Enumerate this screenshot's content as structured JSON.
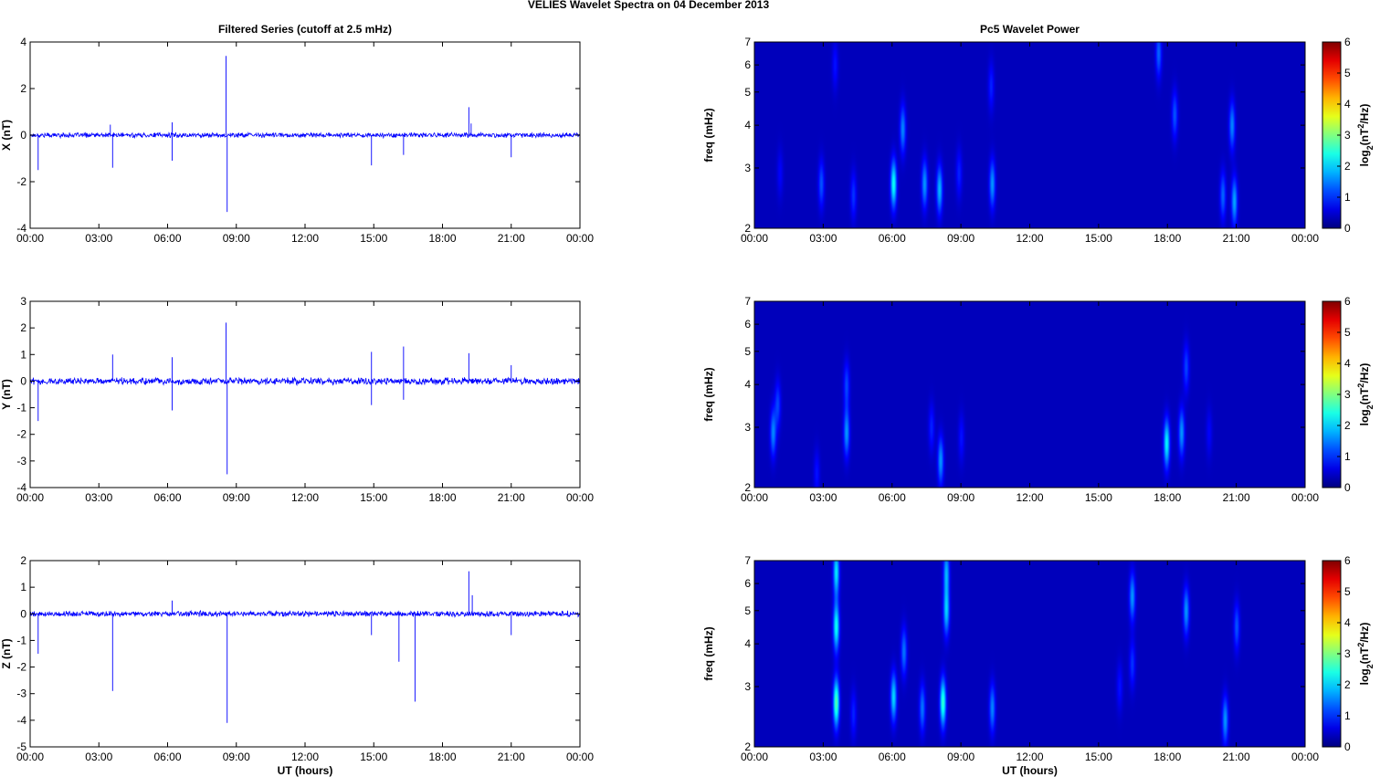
{
  "title": "VELIES Wavelet Spectra on 04 December  2013",
  "colors": {
    "trace": "#0000ff",
    "background": "#00008f",
    "axes": "#000000"
  },
  "chart_data": [
    {
      "type": "line",
      "title": "Filtered Series (cutoff at 2.5 mHz)",
      "ylabel": "X (nT)",
      "xlabel": "",
      "xlim": [
        0,
        24
      ],
      "ylim": [
        -4,
        4
      ],
      "xticks": [
        "00:00",
        "03:00",
        "06:00",
        "09:00",
        "12:00",
        "15:00",
        "18:00",
        "21:00",
        "00:00"
      ],
      "yticks": [
        "-4",
        "-2",
        "0",
        "2",
        "4"
      ],
      "noise": 0.08,
      "spikes": [
        [
          0.35,
          -1.5
        ],
        [
          3.6,
          -1.4
        ],
        [
          3.5,
          0.45
        ],
        [
          6.2,
          -1.1
        ],
        [
          6.2,
          0.55
        ],
        [
          8.55,
          3.4
        ],
        [
          8.6,
          -3.3
        ],
        [
          14.9,
          -1.3
        ],
        [
          16.3,
          -0.85
        ],
        [
          19.15,
          1.2
        ],
        [
          19.25,
          0.5
        ],
        [
          21.0,
          -0.95
        ]
      ]
    },
    {
      "type": "line",
      "title": "",
      "ylabel": "Y (nT)",
      "xlabel": "",
      "xlim": [
        0,
        24
      ],
      "ylim": [
        -4,
        3
      ],
      "xticks": [
        "00:00",
        "03:00",
        "06:00",
        "09:00",
        "12:00",
        "15:00",
        "18:00",
        "21:00",
        "00:00"
      ],
      "yticks": [
        "-4",
        "-3",
        "-2",
        "-1",
        "0",
        "1",
        "2",
        "3"
      ],
      "noise": 0.1,
      "spikes": [
        [
          0.35,
          -1.5
        ],
        [
          3.6,
          1.0
        ],
        [
          6.2,
          -1.1
        ],
        [
          6.2,
          0.9
        ],
        [
          8.55,
          2.2
        ],
        [
          8.6,
          -3.5
        ],
        [
          14.9,
          1.1
        ],
        [
          14.9,
          -0.9
        ],
        [
          16.3,
          1.3
        ],
        [
          16.3,
          -0.7
        ],
        [
          19.15,
          1.05
        ],
        [
          21.0,
          0.6
        ]
      ]
    },
    {
      "type": "line",
      "title": "",
      "ylabel": "Z (nT)",
      "xlabel": "UT (hours)",
      "xlim": [
        0,
        24
      ],
      "ylim": [
        -5,
        2
      ],
      "xticks": [
        "00:00",
        "03:00",
        "06:00",
        "09:00",
        "12:00",
        "15:00",
        "18:00",
        "21:00",
        "00:00"
      ],
      "yticks": [
        "-5",
        "-4",
        "-3",
        "-2",
        "-1",
        "0",
        "1",
        "2"
      ],
      "noise": 0.08,
      "spikes": [
        [
          0.35,
          -1.5
        ],
        [
          3.6,
          -2.9
        ],
        [
          6.2,
          0.5
        ],
        [
          8.6,
          -4.1
        ],
        [
          14.9,
          -0.8
        ],
        [
          16.1,
          -1.8
        ],
        [
          16.8,
          -3.3
        ],
        [
          19.15,
          1.6
        ],
        [
          19.3,
          0.7
        ],
        [
          21.0,
          -0.8
        ]
      ]
    },
    {
      "type": "heatmap",
      "title": "Pc5 Wavelet Power",
      "ylabel": "freq (mHz)",
      "xlabel": "",
      "xlim": [
        0,
        24
      ],
      "ylim": [
        2,
        7
      ],
      "yscale": "log",
      "xticks": [
        "00:00",
        "03:00",
        "06:00",
        "09:00",
        "12:00",
        "15:00",
        "18:00",
        "21:00",
        "00:00"
      ],
      "yticks": [
        "2",
        "3",
        "4",
        "5",
        "6",
        "7"
      ],
      "colorbar": {
        "label": "log2(nT2/Hz)",
        "ticks": [
          "0",
          "1",
          "2",
          "3",
          "4",
          "5",
          "6"
        ],
        "range": [
          0,
          6
        ]
      },
      "blobs": [
        {
          "t": 6.05,
          "f": 2.7,
          "intensity": 2.0
        },
        {
          "t": 6.45,
          "f": 3.9,
          "intensity": 1.2
        },
        {
          "t": 7.4,
          "f": 2.7,
          "intensity": 1.3
        },
        {
          "t": 8.05,
          "f": 2.6,
          "intensity": 1.5
        },
        {
          "t": 10.35,
          "f": 2.7,
          "intensity": 1.3
        },
        {
          "t": 2.9,
          "f": 2.7,
          "intensity": 0.9
        },
        {
          "t": 4.3,
          "f": 2.5,
          "intensity": 0.7
        },
        {
          "t": 17.6,
          "f": 6.5,
          "intensity": 1.0
        },
        {
          "t": 18.3,
          "f": 4.3,
          "intensity": 0.9
        },
        {
          "t": 20.8,
          "f": 4.0,
          "intensity": 1.2
        },
        {
          "t": 20.4,
          "f": 2.5,
          "intensity": 1.0
        },
        {
          "t": 20.9,
          "f": 2.4,
          "intensity": 1.4
        },
        {
          "t": 10.3,
          "f": 5.2,
          "intensity": 0.6
        },
        {
          "t": 3.5,
          "f": 6.0,
          "intensity": 0.5
        },
        {
          "t": 8.9,
          "f": 2.9,
          "intensity": 0.6
        },
        {
          "t": 1.1,
          "f": 2.9,
          "intensity": 0.4
        }
      ]
    },
    {
      "type": "heatmap",
      "title": "",
      "ylabel": "freq (mHz)",
      "xlabel": "",
      "xlim": [
        0,
        24
      ],
      "ylim": [
        2,
        7
      ],
      "yscale": "log",
      "xticks": [
        "00:00",
        "03:00",
        "06:00",
        "09:00",
        "12:00",
        "15:00",
        "18:00",
        "21:00",
        "00:00"
      ],
      "yticks": [
        "2",
        "3",
        "4",
        "5",
        "6",
        "7"
      ],
      "colorbar": {
        "label": "log2(nT2/Hz)",
        "ticks": [
          "0",
          "1",
          "2",
          "3",
          "4",
          "5",
          "6"
        ],
        "range": [
          0,
          6
        ]
      },
      "blobs": [
        {
          "t": 0.8,
          "f": 2.9,
          "intensity": 1.2
        },
        {
          "t": 1.0,
          "f": 3.5,
          "intensity": 0.8
        },
        {
          "t": 4.0,
          "f": 2.9,
          "intensity": 1.3
        },
        {
          "t": 4.0,
          "f": 4.0,
          "intensity": 0.8
        },
        {
          "t": 8.1,
          "f": 2.4,
          "intensity": 1.3
        },
        {
          "t": 7.7,
          "f": 3.0,
          "intensity": 0.6
        },
        {
          "t": 17.95,
          "f": 2.7,
          "intensity": 1.9
        },
        {
          "t": 18.6,
          "f": 2.9,
          "intensity": 1.3
        },
        {
          "t": 18.8,
          "f": 4.5,
          "intensity": 0.8
        },
        {
          "t": 2.7,
          "f": 2.2,
          "intensity": 0.5
        },
        {
          "t": 9.0,
          "f": 2.8,
          "intensity": 0.5
        },
        {
          "t": 19.8,
          "f": 2.9,
          "intensity": 0.4
        }
      ]
    },
    {
      "type": "heatmap",
      "title": "",
      "ylabel": "freq (mHz)",
      "xlabel": "UT (hours)",
      "xlim": [
        0,
        24
      ],
      "ylim": [
        2,
        7
      ],
      "yscale": "log",
      "xticks": [
        "00:00",
        "03:00",
        "06:00",
        "09:00",
        "12:00",
        "15:00",
        "18:00",
        "21:00",
        "00:00"
      ],
      "yticks": [
        "2",
        "3",
        "4",
        "5",
        "6",
        "7"
      ],
      "colorbar": {
        "label": "log2(nT2/Hz)",
        "ticks": [
          "0",
          "1",
          "2",
          "3",
          "4",
          "5",
          "6"
        ],
        "range": [
          0,
          6
        ]
      },
      "blobs": [
        {
          "t": 3.55,
          "f": 2.7,
          "intensity": 2.4
        },
        {
          "t": 3.55,
          "f": 4.5,
          "intensity": 2.0
        },
        {
          "t": 3.55,
          "f": 6.5,
          "intensity": 1.8
        },
        {
          "t": 8.2,
          "f": 2.7,
          "intensity": 2.2
        },
        {
          "t": 8.35,
          "f": 5.0,
          "intensity": 1.6
        },
        {
          "t": 8.35,
          "f": 6.5,
          "intensity": 1.4
        },
        {
          "t": 6.05,
          "f": 2.8,
          "intensity": 1.7
        },
        {
          "t": 6.5,
          "f": 3.8,
          "intensity": 1.1
        },
        {
          "t": 7.3,
          "f": 2.6,
          "intensity": 1.1
        },
        {
          "t": 10.35,
          "f": 2.6,
          "intensity": 1.2
        },
        {
          "t": 4.3,
          "f": 2.5,
          "intensity": 0.6
        },
        {
          "t": 16.45,
          "f": 5.5,
          "intensity": 1.3
        },
        {
          "t": 16.45,
          "f": 3.5,
          "intensity": 0.7
        },
        {
          "t": 18.8,
          "f": 5.0,
          "intensity": 1.3
        },
        {
          "t": 20.5,
          "f": 2.4,
          "intensity": 1.3
        },
        {
          "t": 21.0,
          "f": 4.5,
          "intensity": 0.9
        },
        {
          "t": 15.9,
          "f": 3.0,
          "intensity": 0.5
        }
      ]
    }
  ]
}
